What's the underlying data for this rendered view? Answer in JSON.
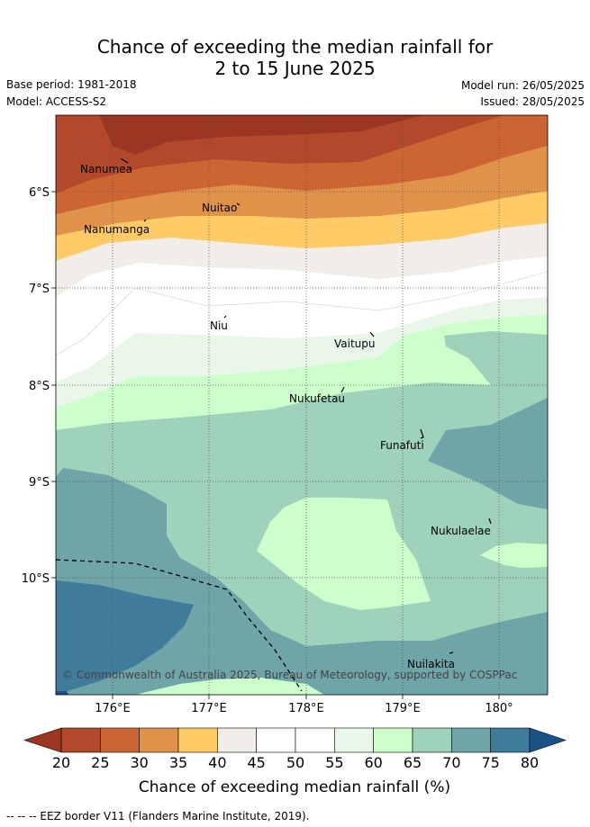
{
  "title": {
    "line1": "Chance of exceeding the median rainfall for",
    "line2": "2 to 15 June 2025"
  },
  "meta": {
    "base_period": "Base period: 1981-2018",
    "model": "Model: ACCESS-S2",
    "model_run": "Model run: 26/05/2025",
    "issued": "Issued: 28/05/2025"
  },
  "map": {
    "lon_range": [
      175.45,
      180.5
    ],
    "lat_range": [
      -11.2,
      -5.2
    ],
    "x_ticks": [
      {
        "value": 176,
        "label": "176°E"
      },
      {
        "value": 177,
        "label": "177°E"
      },
      {
        "value": 178,
        "label": "178°E"
      },
      {
        "value": 179,
        "label": "179°E"
      },
      {
        "value": 180,
        "label": "180°"
      }
    ],
    "y_ticks": [
      {
        "value": -6,
        "label": "6°S"
      },
      {
        "value": -7,
        "label": "7°S"
      },
      {
        "value": -8,
        "label": "8°S"
      },
      {
        "value": -9,
        "label": "9°S"
      },
      {
        "value": -10,
        "label": "10°S"
      }
    ],
    "places": [
      {
        "name": "Nanumea"
      },
      {
        "name": "Nuitao"
      },
      {
        "name": "Nanumanga"
      },
      {
        "name": "Niu"
      },
      {
        "name": "Vaitupu"
      },
      {
        "name": "Nukufetau"
      },
      {
        "name": "Funafuti"
      },
      {
        "name": "Nukulaelae"
      },
      {
        "name": "Nuilakita"
      }
    ],
    "copyright": "© Commonwealth of Australia 2025, Bureau of Meteorology, supported by COSPPac"
  },
  "colorbar": {
    "label": "Chance of exceeding median rainfall (%)",
    "ticks": [
      "20",
      "25",
      "30",
      "35",
      "40",
      "45",
      "50",
      "55",
      "60",
      "65",
      "70",
      "75",
      "80"
    ],
    "colors": [
      "#b1492a",
      "#cd6533",
      "#e0914a",
      "#fecb66",
      "#f1ede9",
      "#ffffff",
      "#ffffff",
      "#ebf6eb",
      "#ccffcc",
      "#9ed2ba",
      "#6fa4a8",
      "#3f7c9c"
    ],
    "under_color": "#9b3622",
    "over_color": "#1b5287"
  },
  "footer": {
    "eez_legend": "--  --  -- EEZ border V11 (Flanders Marine Institute, 2019)."
  }
}
